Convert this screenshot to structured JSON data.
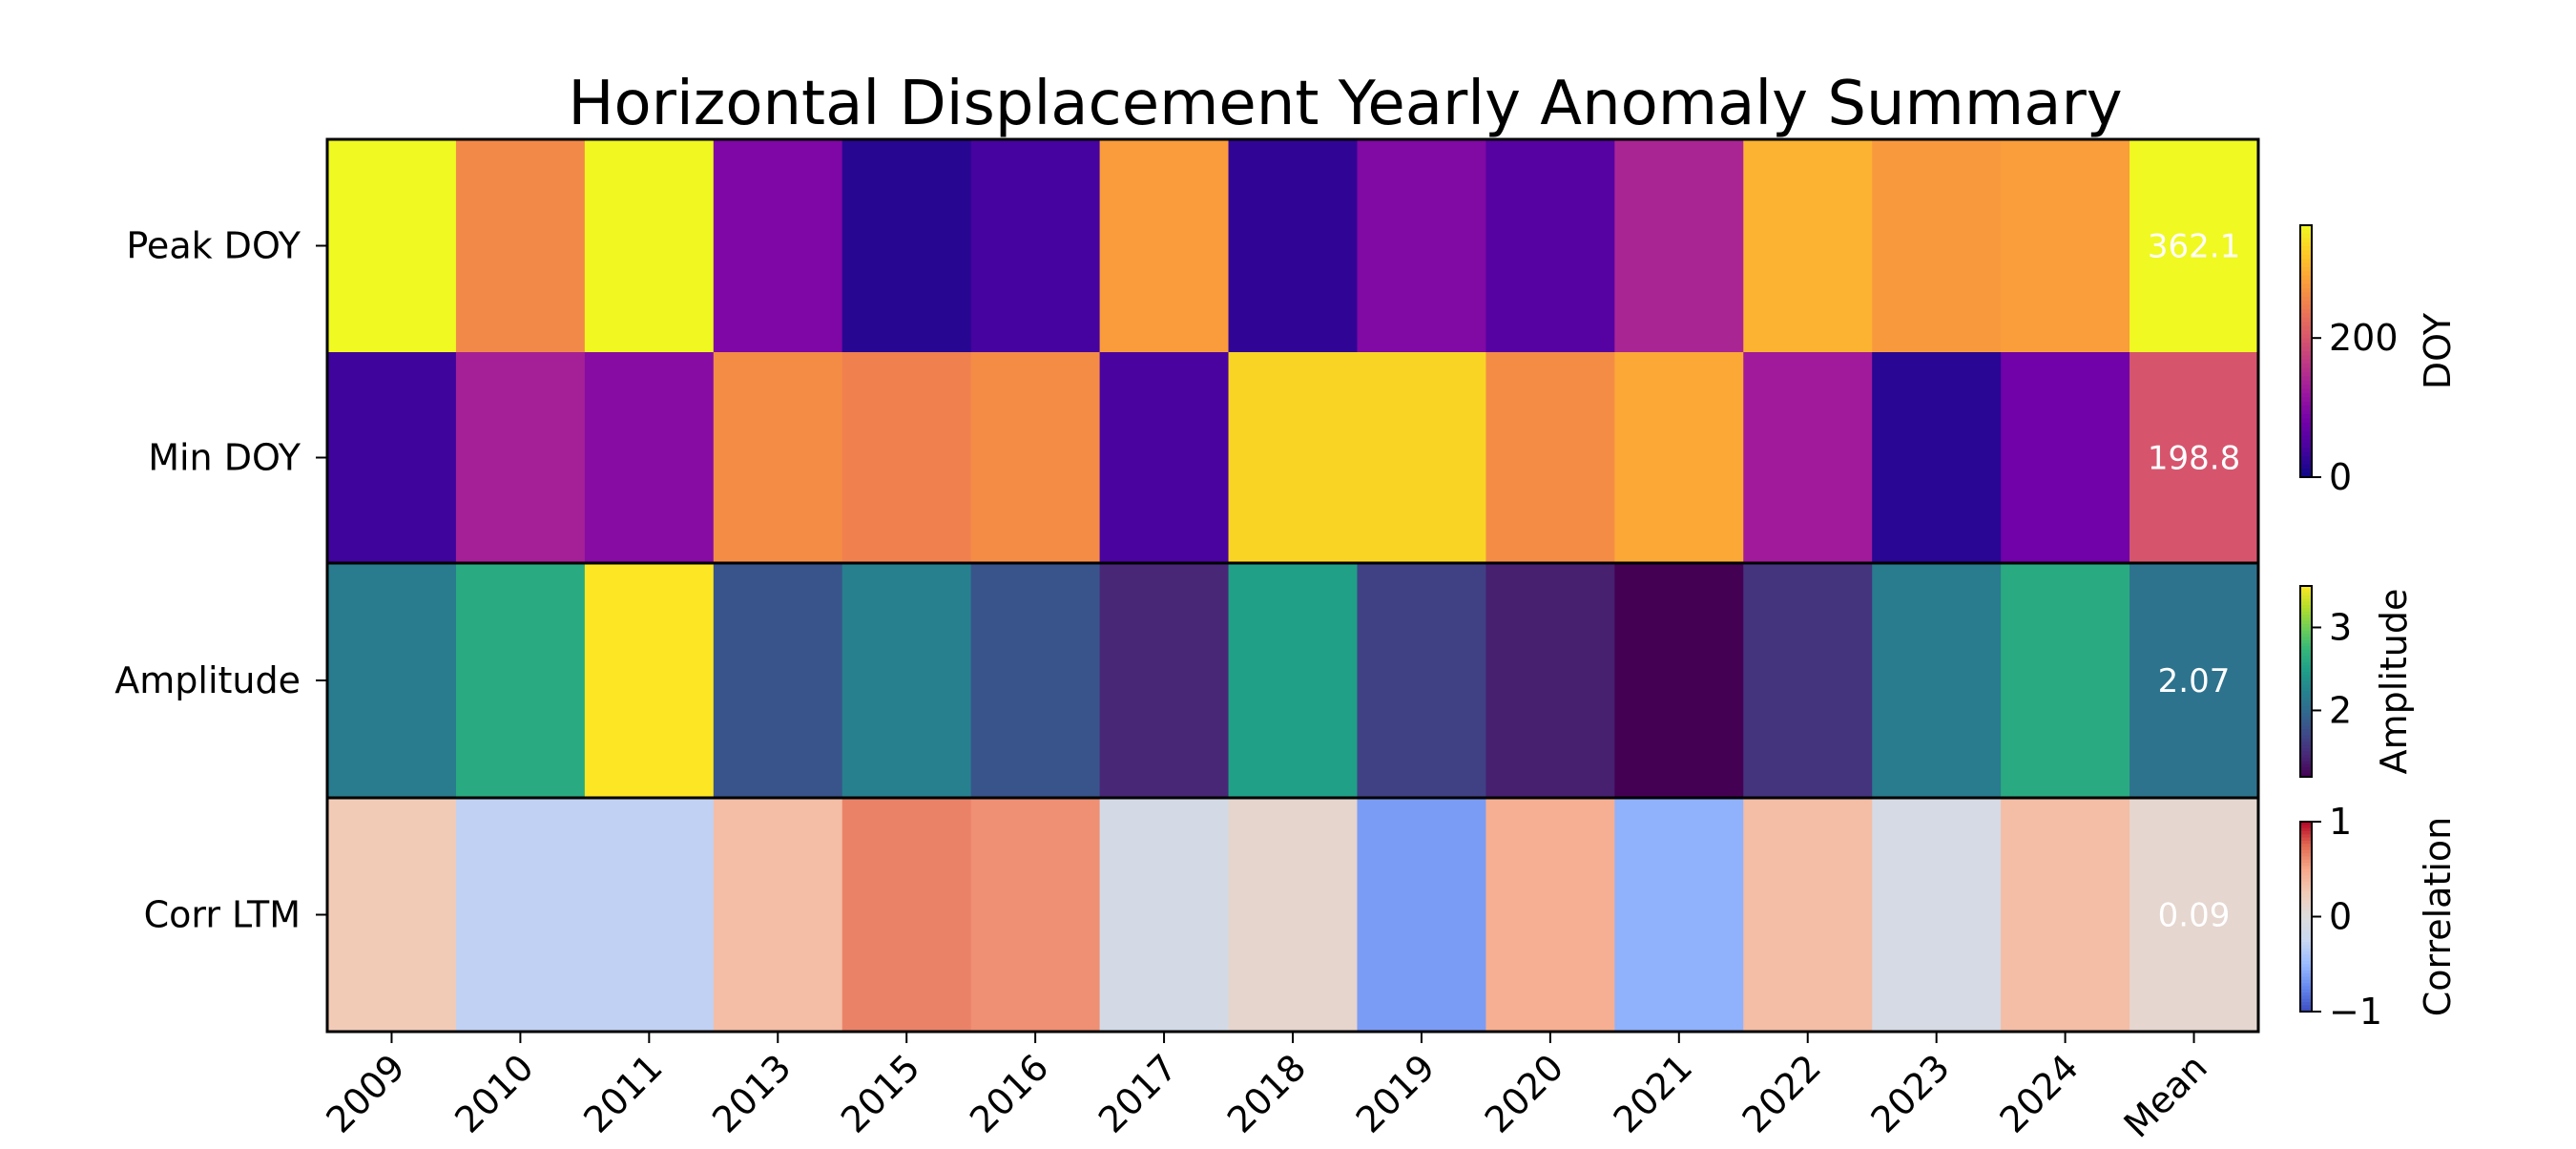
{
  "chart_data": {
    "type": "heatmap",
    "title": "Horizontal Displacement Yearly Anomaly Summary",
    "columns": [
      "2009",
      "2010",
      "2011",
      "2013",
      "2015",
      "2016",
      "2017",
      "2018",
      "2019",
      "2020",
      "2021",
      "2022",
      "2023",
      "2024",
      "Mean"
    ],
    "mean_column_label": "Mean",
    "rows": [
      {
        "label": "Peak DOY",
        "colorbar": "DOY",
        "colormap": "plasma",
        "range": [
          0,
          362.1
        ],
        "ticks": [
          0,
          200
        ],
        "values": [
          362,
          258,
          360,
          92,
          18,
          40,
          278,
          25,
          95,
          55,
          138,
          300,
          275,
          280,
          362.1
        ],
        "mean_label": "362.1"
      },
      {
        "label": "Min DOY",
        "colorbar": "DOY",
        "colormap": "plasma",
        "range": [
          0,
          362.1
        ],
        "ticks": [
          0,
          200
        ],
        "values": [
          35,
          132,
          100,
          262,
          250,
          262,
          45,
          330,
          330,
          262,
          290,
          125,
          20,
          80,
          198.8
        ],
        "mean_label": "198.8"
      },
      {
        "label": "Amplitude",
        "colorbar": "Amplitude",
        "colormap": "viridis",
        "range": [
          1.2,
          3.5
        ],
        "ticks": [
          2,
          3
        ],
        "values": [
          2.15,
          2.6,
          3.5,
          1.8,
          2.2,
          1.8,
          1.45,
          2.5,
          1.65,
          1.4,
          1.2,
          1.55,
          2.15,
          2.6,
          2.07
        ],
        "mean_label": "2.07"
      },
      {
        "label": "Corr LTM",
        "colorbar": "Correlation",
        "colormap": "coolwarm",
        "range": [
          -1,
          1
        ],
        "ticks": [
          -1,
          0,
          1
        ],
        "values": [
          0.25,
          -0.3,
          -0.3,
          0.35,
          0.65,
          0.6,
          -0.12,
          0.1,
          -0.65,
          0.45,
          -0.55,
          0.35,
          -0.1,
          0.35,
          0.09
        ],
        "mean_label": "0.09"
      }
    ],
    "colorbars": [
      {
        "label": "DOY",
        "colormap": "plasma",
        "range": [
          0,
          362.1
        ],
        "ticks": [
          0,
          200
        ],
        "tick_labels": [
          "0",
          "200"
        ]
      },
      {
        "label": "Amplitude",
        "colormap": "viridis",
        "range": [
          1.2,
          3.5
        ],
        "ticks": [
          2,
          3
        ],
        "tick_labels": [
          "2",
          "3"
        ]
      },
      {
        "label": "Correlation",
        "colormap": "coolwarm",
        "range": [
          -1,
          1
        ],
        "ticks": [
          -1,
          0,
          1
        ],
        "tick_labels": [
          "−1",
          "0",
          "1"
        ]
      }
    ]
  }
}
